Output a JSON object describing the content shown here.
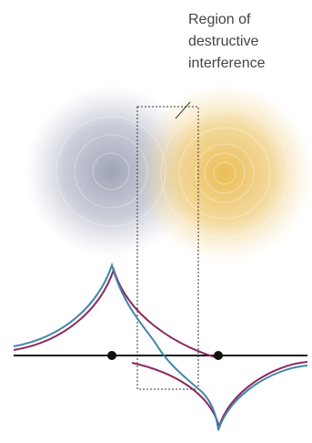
{
  "annotation": {
    "lines": [
      "Region of",
      "destructive",
      "interference"
    ]
  }
}
